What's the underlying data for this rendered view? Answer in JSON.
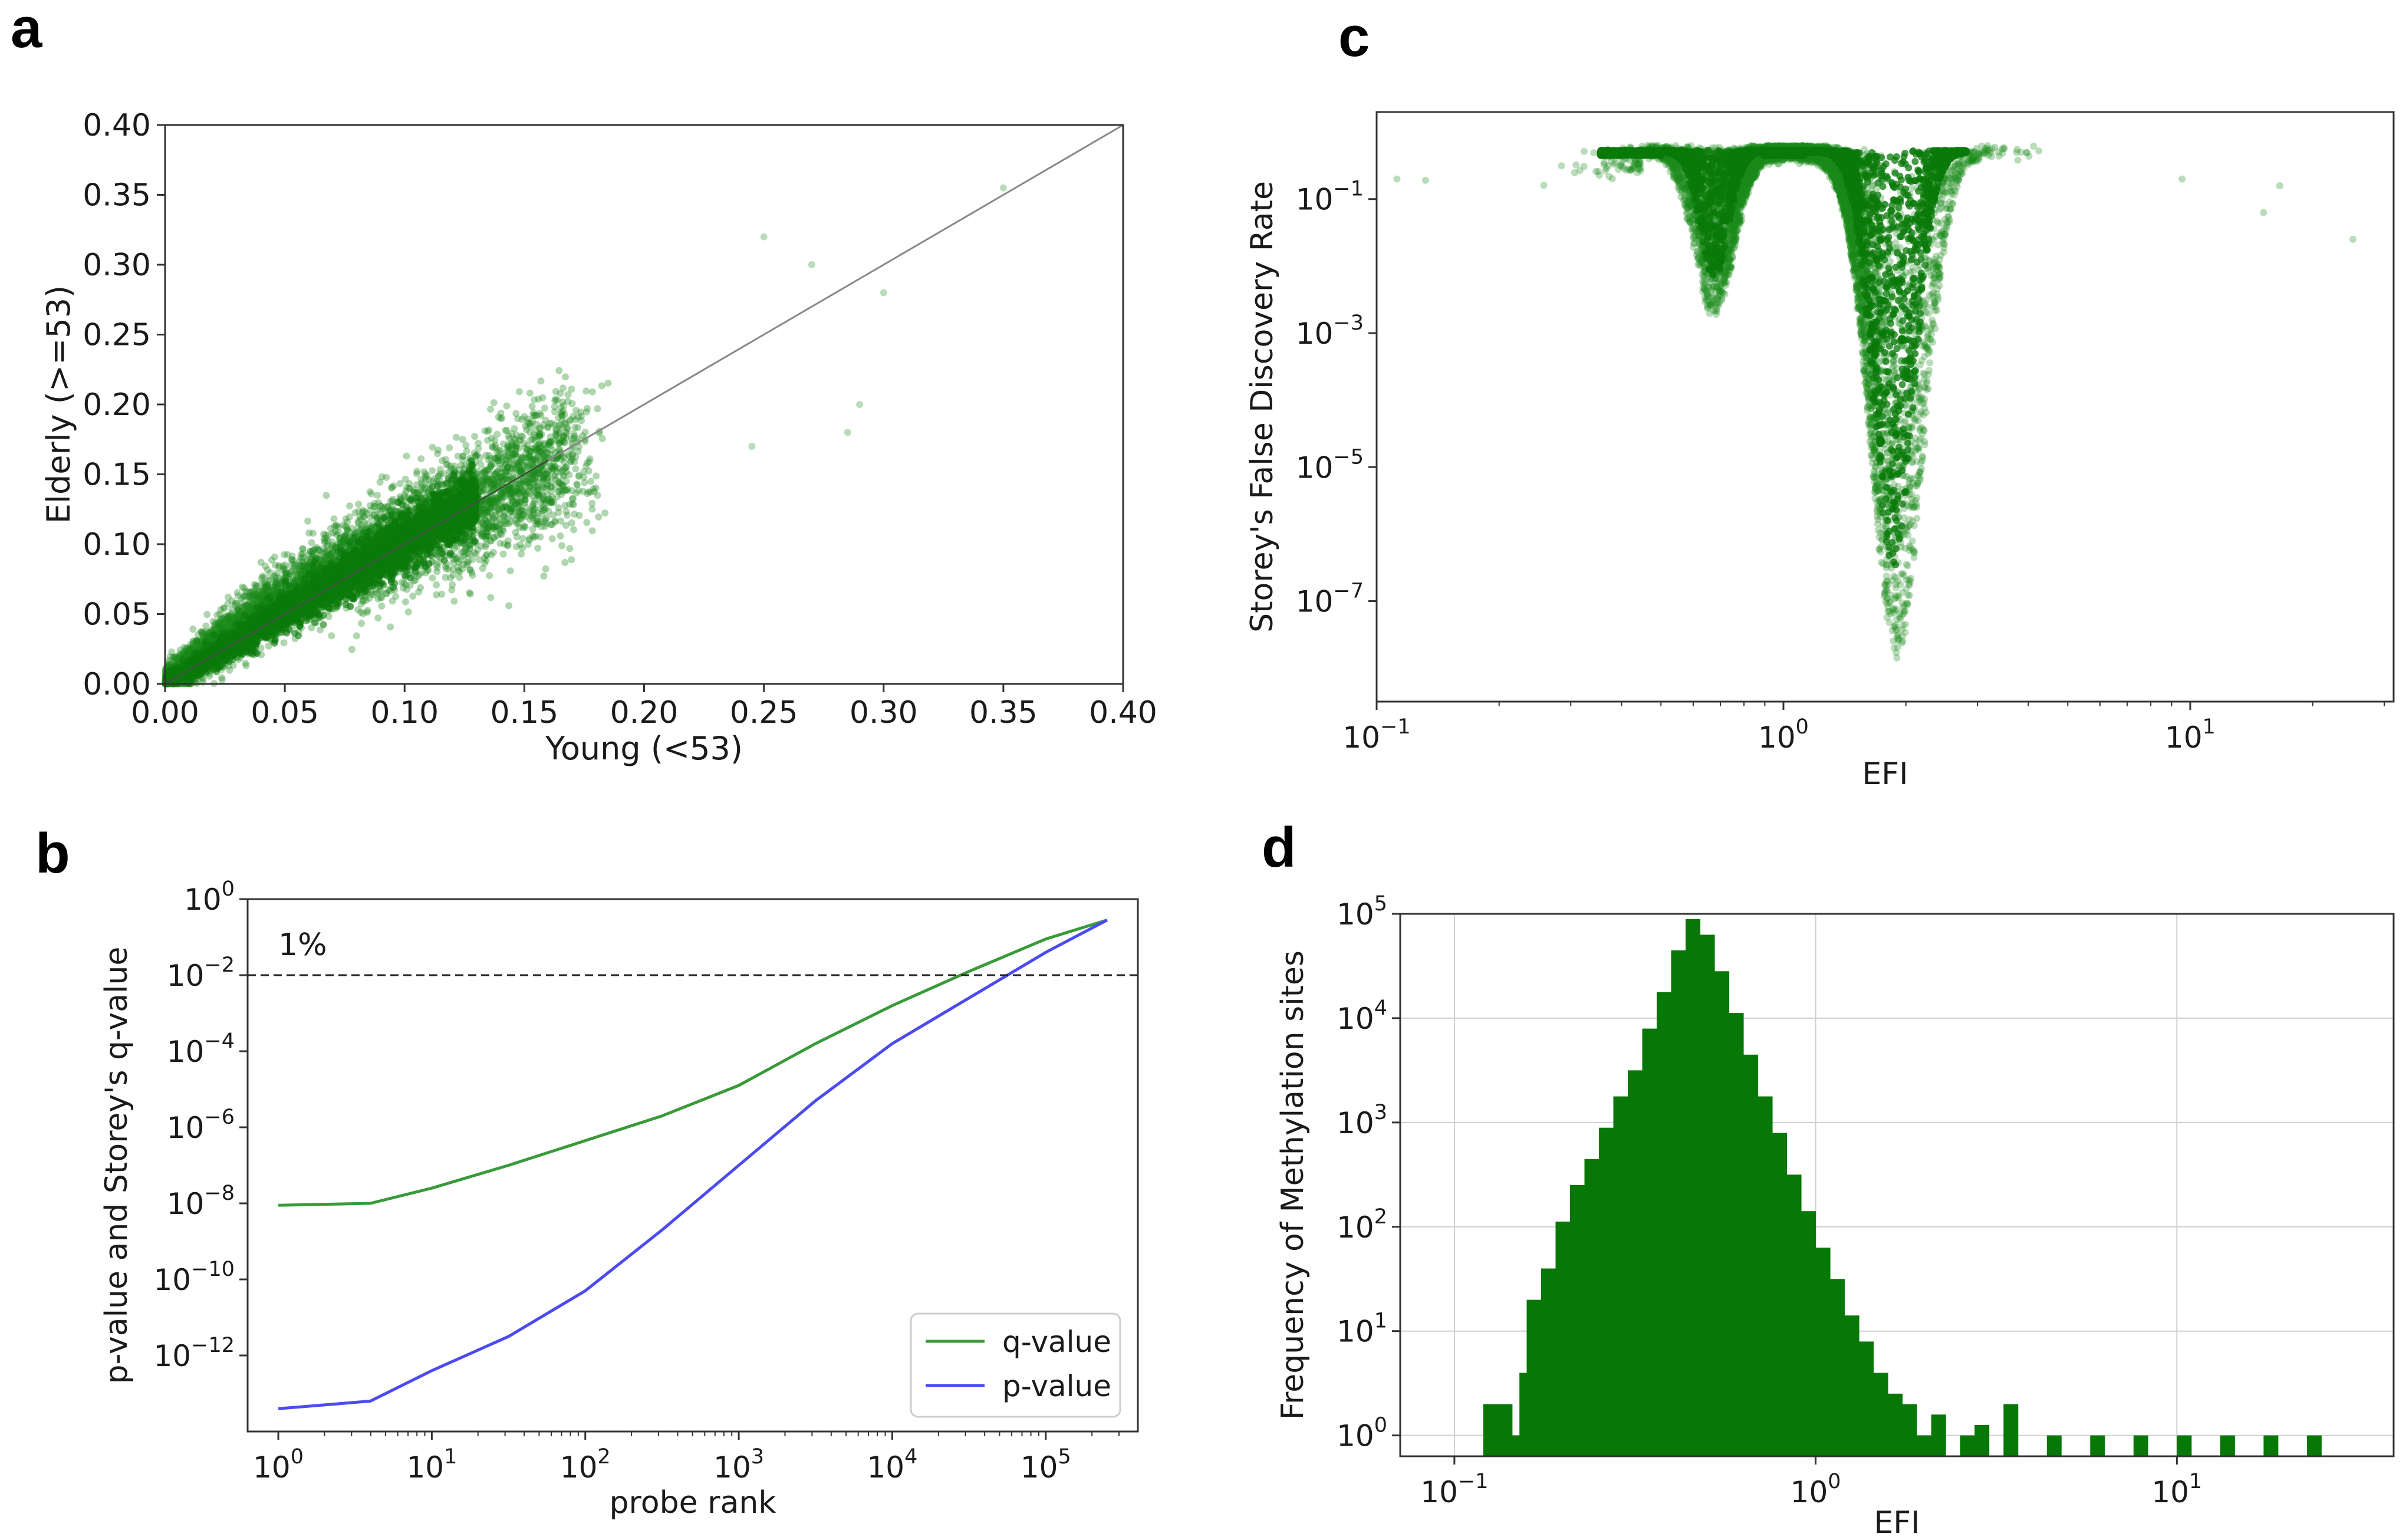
{
  "panels": {
    "a": "a",
    "b": "b",
    "c": "c",
    "d": "d"
  },
  "colors": {
    "scatter": "#1a8a1a",
    "scatter_dense": "#0a7a0a",
    "q_line": "#3a9a3a",
    "p_line": "#4b4bf0",
    "hist": "#077807",
    "diag": "#888888"
  },
  "chart_data": [
    {
      "id": "a",
      "type": "scatter",
      "xlabel": "Young (<53)",
      "ylabel": "Elderly (>=53)",
      "xlim": [
        0,
        0.4
      ],
      "ylim": [
        0,
        0.4
      ],
      "xticks": [
        "0.00",
        "0.05",
        "0.10",
        "0.15",
        "0.20",
        "0.25",
        "0.30",
        "0.35",
        "0.40"
      ],
      "yticks": [
        "0.00",
        "0.05",
        "0.10",
        "0.15",
        "0.20",
        "0.25",
        "0.30",
        "0.35",
        "0.40"
      ],
      "reference_line": "y = x",
      "outliers": [
        [
          0.25,
          0.32
        ],
        [
          0.27,
          0.3
        ],
        [
          0.3,
          0.28
        ],
        [
          0.245,
          0.17
        ],
        [
          0.285,
          0.18
        ],
        [
          0.35,
          0.355
        ],
        [
          0.29,
          0.2
        ]
      ]
    },
    {
      "id": "b",
      "type": "line",
      "xlabel": "probe rank",
      "ylabel": "p-value and Storey's q-value",
      "xscale": "log",
      "yscale": "log",
      "xlim_exp": [
        -0.2,
        5.6
      ],
      "ylim_exp": [
        -14,
        0
      ],
      "xticks_exp": [
        0,
        1,
        2,
        3,
        4,
        5
      ],
      "yticks_exp": [
        0,
        -2,
        -4,
        -6,
        -8,
        -10,
        -12
      ],
      "threshold": 0.01,
      "threshold_label": "1%",
      "series": [
        {
          "name": "q-value",
          "log10_x": [
            0,
            0.6,
            1,
            1.5,
            2,
            2.5,
            3,
            3.5,
            4,
            4.5,
            5,
            5.4
          ],
          "log10_y": [
            -8.05,
            -8.0,
            -7.6,
            -7.0,
            -6.35,
            -5.7,
            -4.9,
            -3.8,
            -2.8,
            -1.9,
            -1.05,
            -0.55
          ]
        },
        {
          "name": "p-value",
          "log10_x": [
            0,
            0.6,
            1,
            1.5,
            2,
            2.5,
            3,
            3.5,
            4,
            4.5,
            5,
            5.4
          ],
          "log10_y": [
            -13.4,
            -13.2,
            -12.4,
            -11.5,
            -10.3,
            -8.7,
            -7.0,
            -5.3,
            -3.8,
            -2.6,
            -1.4,
            -0.55
          ]
        }
      ]
    },
    {
      "id": "c",
      "type": "scatter",
      "xlabel": "EFI",
      "ylabel": "Storey's False Discovery Rate",
      "xscale": "log",
      "yscale": "log",
      "xlim_exp": [
        -1.0,
        1.5
      ],
      "ylim_exp": [
        -8.5,
        0.3
      ],
      "xticks_exp": [
        -1,
        0,
        1
      ],
      "yticks_exp": [
        -1,
        -3,
        -5,
        -7
      ],
      "outliers": [
        [
          -0.95,
          -0.7
        ],
        [
          -0.88,
          -0.72
        ],
        [
          1.4,
          -1.6
        ],
        [
          1.18,
          -1.2
        ],
        [
          1.22,
          -0.8
        ],
        [
          0.98,
          -0.7
        ]
      ]
    },
    {
      "id": "d",
      "type": "bar",
      "xlabel": "EFI",
      "ylabel": "Frequency of Methylation sites",
      "xscale": "log",
      "yscale": "log",
      "xlim_exp": [
        -1.15,
        1.6
      ],
      "ylim_exp": [
        -0.2,
        5.0
      ],
      "xticks_exp": [
        -1,
        0,
        1
      ],
      "yticks_exp": [
        0,
        1,
        2,
        3,
        4,
        5
      ],
      "grid": true,
      "bins_log10_efi": [
        -0.78,
        -0.74,
        -0.7,
        -0.66,
        -0.62,
        -0.58,
        -0.54,
        -0.5,
        -0.46,
        -0.42,
        -0.38,
        -0.34,
        -0.3,
        -0.26,
        -0.22,
        -0.18,
        -0.14,
        -0.1,
        -0.06,
        -0.02,
        0.02,
        0.06,
        0.1,
        0.14,
        0.18,
        0.22,
        0.26,
        0.3,
        0.34,
        0.38,
        0.42,
        0.46,
        0.5,
        0.54,
        0.58,
        0.62,
        0.66,
        0.7,
        0.74,
        0.78,
        0.82,
        0.86,
        0.9,
        0.94,
        0.98,
        1.02,
        1.06,
        1.1,
        1.14,
        1.18,
        1.22,
        1.26,
        1.3,
        1.34,
        1.38,
        1.42
      ],
      "counts_log10": [
        1.3,
        1.6,
        2.05,
        2.4,
        2.65,
        2.95,
        3.25,
        3.5,
        3.9,
        4.25,
        4.65,
        4.95,
        4.8,
        4.45,
        4.05,
        3.65,
        3.25,
        2.9,
        2.5,
        2.15,
        1.8,
        1.5,
        1.15,
        0.9,
        0.6,
        0.4,
        0.3,
        0,
        0.2,
        0,
        0,
        0.1,
        0,
        0.3,
        0,
        0,
        0,
        0,
        0,
        0,
        0,
        0,
        0,
        0,
        0,
        0,
        0,
        0,
        0,
        0,
        0,
        0,
        0,
        0,
        0,
        0
      ],
      "sparse_bars": [
        [
          -0.9,
          0.3
        ],
        [
          -0.86,
          0.3
        ],
        [
          -0.82,
          0
        ],
        [
          -0.8,
          0.6
        ]
      ]
    }
  ]
}
